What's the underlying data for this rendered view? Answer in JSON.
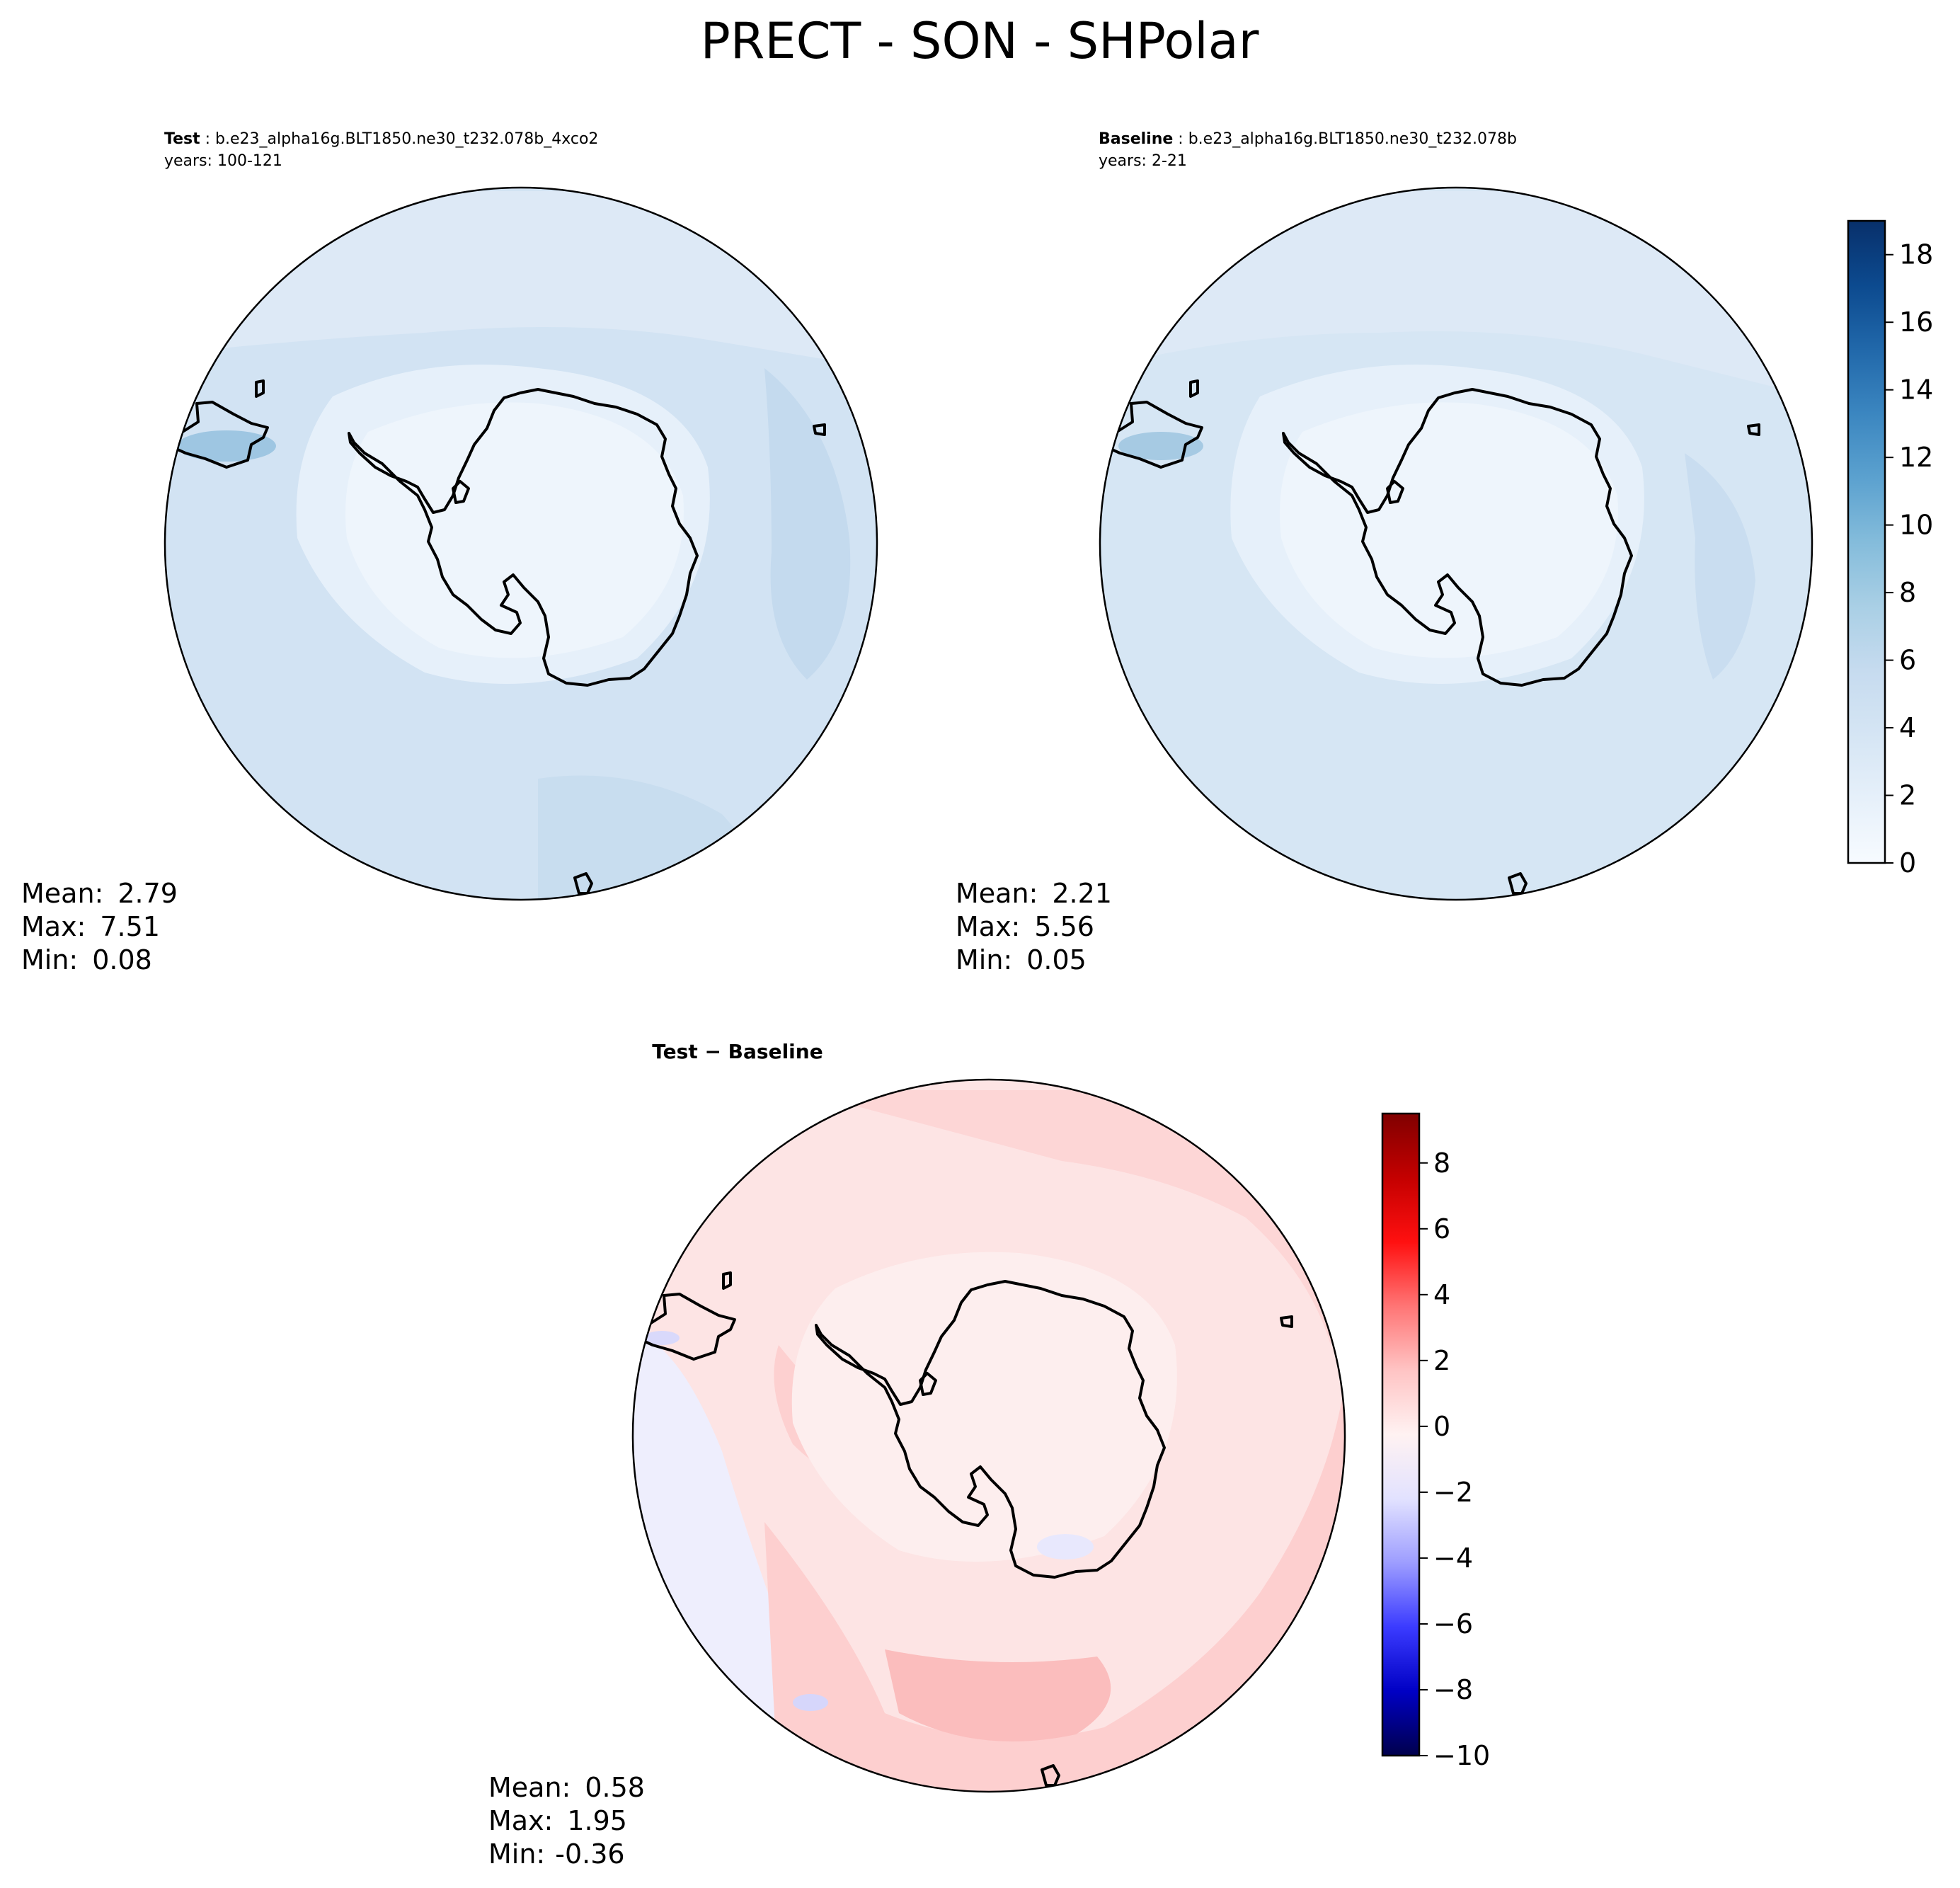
{
  "chart_data": {
    "type": "contour-map",
    "title": "PRECT - SON - SHPolar",
    "colors": {
      "continent_outline": "#000000",
      "seq_cmap": [
        "#f7fbff",
        "#e6f0fa",
        "#d5e5f4",
        "#c6dbef",
        "#a9cfe5",
        "#84bcdb",
        "#5ba1cf",
        "#3b86c0",
        "#2168aa",
        "#0c4a8f",
        "#08306b"
      ],
      "div_cmap": [
        "#00004c",
        "#0000c4",
        "#3b3bff",
        "#9d9dff",
        "#e2e2ff",
        "#fff2f2",
        "#ffc4c4",
        "#ff7575",
        "#ff1010",
        "#c40000",
        "#800000"
      ]
    },
    "panels": [
      {
        "id": "test",
        "label": "Test",
        "case": "b.e23_alpha16g.BLT1850.ne30_t232.078b_4xco2",
        "years": "years: 100-121",
        "stats": {
          "mean_label": "Mean:",
          "mean": "2.79",
          "max_label": "Max:",
          "max": "7.51",
          "min_label": "Min:",
          "min": "0.08"
        }
      },
      {
        "id": "baseline",
        "label": "Baseline",
        "case": "b.e23_alpha16g.BLT1850.ne30_t232.078b",
        "years": "years: 2-21",
        "stats": {
          "mean_label": "Mean:",
          "mean": "2.21",
          "max_label": "Max:",
          "max": "5.56",
          "min_label": "Min:",
          "min": "0.05"
        }
      },
      {
        "id": "diff",
        "label": "Test − Baseline",
        "stats": {
          "mean_label": "Mean:",
          "mean": "0.58",
          "max_label": "Max:",
          "max": "1.95",
          "min_label": "Min:",
          "min": "-0.36"
        }
      }
    ],
    "colorbars": [
      {
        "id": "seq",
        "vmin": 0,
        "vmax": 19,
        "ticks": [
          0,
          2,
          4,
          6,
          8,
          10,
          12,
          14,
          16,
          18
        ],
        "tick_labels": [
          "0",
          "2",
          "4",
          "6",
          "8",
          "10",
          "12",
          "14",
          "16",
          "18"
        ]
      },
      {
        "id": "div",
        "vmin": -10,
        "vmax": 9.5,
        "ticks": [
          -10,
          -8,
          -6,
          -4,
          -2,
          0,
          2,
          4,
          6,
          8
        ],
        "tick_labels": [
          "−10",
          "−8",
          "−6",
          "−4",
          "−2",
          "0",
          "2",
          "4",
          "6",
          "8"
        ]
      }
    ]
  }
}
